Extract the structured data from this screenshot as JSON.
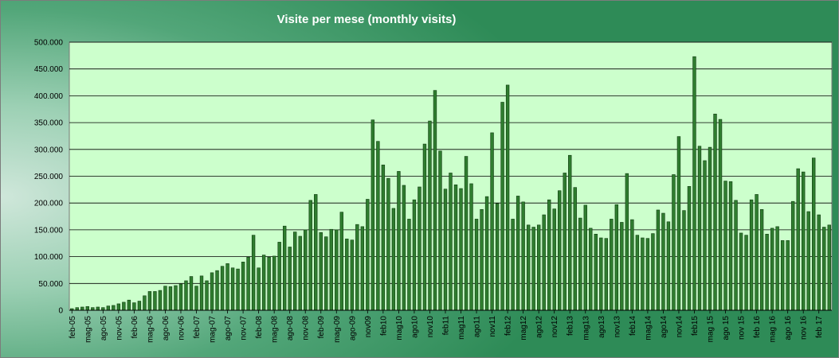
{
  "chart_data": {
    "type": "bar",
    "title": "Visite per mese (monthly visits)",
    "xlabel": "",
    "ylabel": "",
    "ylim": [
      0,
      500000
    ],
    "grid": true,
    "legend": "none",
    "colors": {
      "bar_fill": "#2f7d2f",
      "bar_edge": "#0f3a0f",
      "plot_bg": "#ccffcc",
      "gridline": "#000000",
      "frame_edge": "#2e8b57",
      "frame_center": "#cfe7da",
      "title_color": "#ffffff"
    },
    "y_ticks": [
      "0",
      "50.000",
      "100.000",
      "150.000",
      "200.000",
      "250.000",
      "300.000",
      "350.000",
      "400.000",
      "450.000",
      "500.000"
    ],
    "categories": [
      "feb-05",
      "mar-05",
      "apr-05",
      "mag-05",
      "giu-05",
      "lug-05",
      "ago-05",
      "set-05",
      "ott-05",
      "nov-05",
      "dic-05",
      "gen-06",
      "feb-06",
      "mar-06",
      "apr-06",
      "mag-06",
      "giu-06",
      "lug-06",
      "ago-06",
      "set-06",
      "ott-06",
      "nov-06",
      "dic-06",
      "gen-07",
      "feb-07",
      "mar-07",
      "apr-07",
      "mag-07",
      "giu-07",
      "lug-07",
      "ago-07",
      "set-07",
      "ott-07",
      "nov-07",
      "dic-07",
      "gen-08",
      "feb-08",
      "mar-08",
      "apr-08",
      "mag-08",
      "giu-08",
      "lug-08",
      "ago-08",
      "set-08",
      "ott-08",
      "nov-08",
      "dic-08",
      "gen-09",
      "feb-09",
      "mar-09",
      "apr-09",
      "mag-09",
      "giu-09",
      "lug-09",
      "ago-09",
      "set-09",
      "ott-09",
      "nov09",
      "dic09",
      "gen10",
      "feb10",
      "mar10",
      "apr10",
      "mag10",
      "giu10",
      "lug10",
      "ago10",
      "set10",
      "ott10",
      "nov10",
      "dic10",
      "gen11",
      "feb11",
      "mar11",
      "apr11",
      "mag11",
      "giu11",
      "lug11",
      "ago11",
      "set11",
      "ott11",
      "nov11",
      "dic11",
      "gen12",
      "feb12",
      "mar12",
      "apr12",
      "mag12",
      "giu12",
      "lug12",
      "ago12",
      "set12",
      "ott12",
      "nov12",
      "dic12",
      "gen13",
      "feb13",
      "mar13",
      "apr13",
      "mag13",
      "giu13",
      "lug13",
      "ago13",
      "set13",
      "ott13",
      "nov13",
      "dic13",
      "gen14",
      "feb14",
      "mar14",
      "apr14",
      "mag14",
      "giu14",
      "lug14",
      "ago14",
      "set14",
      "ott14",
      "nov14",
      "dic14",
      "gen15",
      "feb15",
      "mar15",
      "apr15",
      "mag 15",
      "giu 15",
      "lug 15",
      "ago 15",
      "set 15",
      "ott 15",
      "nov 15",
      "dic 15",
      "gen 16",
      "feb 16",
      "mar 16",
      "apr 16",
      "mag 16",
      "giu 16",
      "lug 16",
      "ago 16",
      "set 16",
      "ott 16",
      "nov 16",
      "dic 16",
      "gen 17",
      "feb 17",
      "mar 17",
      "apr 17"
    ],
    "x_tick_labels": [
      "feb-05",
      "mag-05",
      "ago-05",
      "nov-05",
      "feb-06",
      "mag-06",
      "ago-06",
      "nov-06",
      "feb-07",
      "mag-07",
      "ago-07",
      "nov-07",
      "feb-08",
      "mag-08",
      "ago-08",
      "nov-08",
      "feb-09",
      "mag-09",
      "ago-09",
      "nov09",
      "feb10",
      "mag10",
      "ago10",
      "nov10",
      "feb11",
      "mag11",
      "ago11",
      "nov11",
      "feb12",
      "mag12",
      "ago12",
      "nov12",
      "feb13",
      "mag13",
      "ago13",
      "nov13",
      "feb14",
      "mag14",
      "ago14",
      "nov14",
      "feb15",
      "mag 15",
      "ago 15",
      "nov 15",
      "feb 16",
      "mag 16",
      "ago 16",
      "nov 16",
      "feb 17"
    ],
    "values": [
      3000,
      5000,
      6000,
      7000,
      5000,
      6000,
      5000,
      8000,
      9000,
      12000,
      15000,
      19000,
      14000,
      17000,
      27000,
      35000,
      35000,
      37000,
      45000,
      44000,
      46000,
      49000,
      55000,
      63000,
      45000,
      64000,
      55000,
      70000,
      74000,
      82000,
      87000,
      79000,
      77000,
      90000,
      99000,
      140000,
      79000,
      103000,
      99000,
      101000,
      127000,
      157000,
      118000,
      146000,
      138000,
      150000,
      205000,
      216000,
      145000,
      137000,
      151000,
      150000,
      183000,
      133000,
      131000,
      160000,
      156000,
      207000,
      355000,
      315000,
      271000,
      246000,
      190000,
      259000,
      233000,
      170000,
      206000,
      230000,
      310000,
      353000,
      410000,
      297000,
      226000,
      256000,
      234000,
      227000,
      287000,
      236000,
      170000,
      188000,
      212000,
      331000,
      199000,
      388000,
      420000,
      170000,
      213000,
      202000,
      159000,
      155000,
      159000,
      178000,
      206000,
      189000,
      223000,
      256000,
      289000,
      229000,
      172000,
      196000,
      153000,
      142000,
      135000,
      134000,
      170000,
      197000,
      164000,
      255000,
      169000,
      140000,
      135000,
      134000,
      143000,
      187000,
      181000,
      165000,
      253000,
      324000,
      186000,
      231000,
      473000,
      306000,
      279000,
      304000,
      366000,
      356000,
      241000,
      240000,
      205000,
      144000,
      140000,
      206000,
      216000,
      188000,
      142000,
      153000,
      156000,
      130000,
      130000,
      203000,
      264000,
      258000,
      184000,
      284000,
      178000,
      155000,
      159000
    ]
  }
}
